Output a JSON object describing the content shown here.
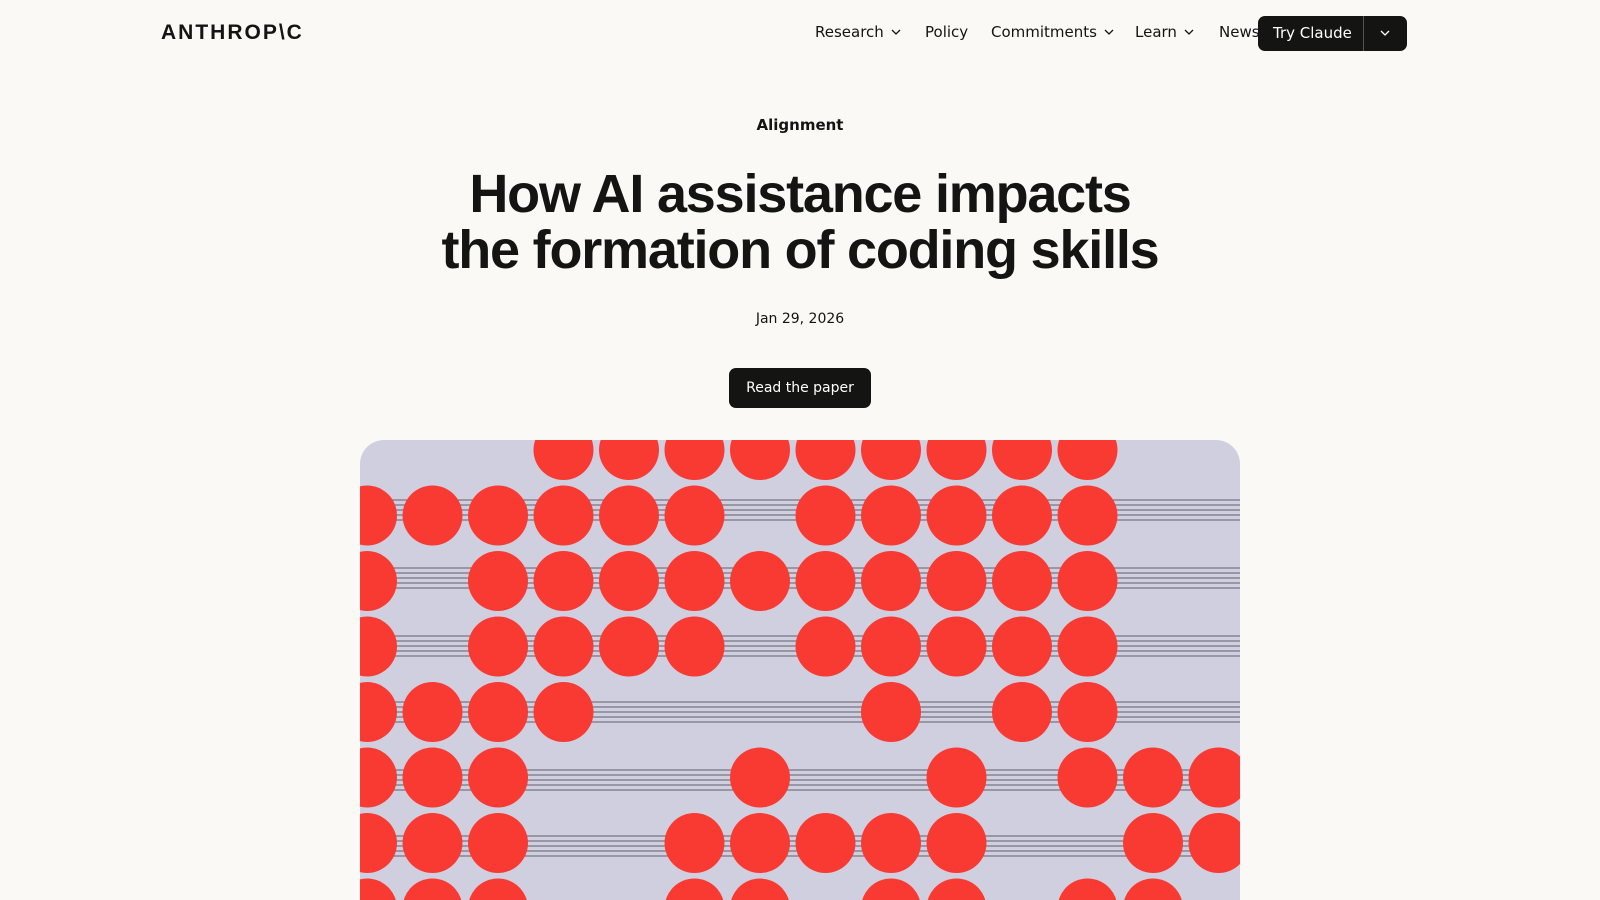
{
  "header": {
    "logo": "ANTHROP\\C",
    "nav": [
      "Research",
      "Policy",
      "Commitments",
      "Learn",
      "News"
    ],
    "cta": "Try Claude"
  },
  "article": {
    "category": "Alignment",
    "title": [
      "How AI assistance impacts",
      "the formation of coding skills"
    ],
    "date": "Jan 29, 2026",
    "button": "Read the paper"
  }
}
